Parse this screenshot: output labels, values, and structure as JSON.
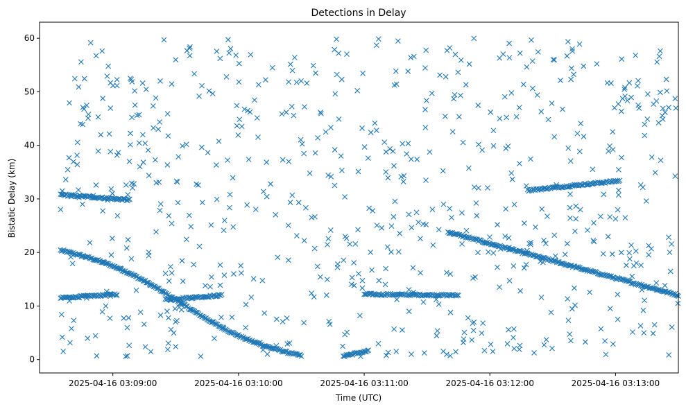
{
  "chart_data": {
    "type": "scatter",
    "title": "Detections in Delay",
    "xlabel": "Time (UTC)",
    "ylabel": "Bistatic Delay (km)",
    "marker": "x",
    "color": "#1f77b4",
    "grid": false,
    "legend": "none",
    "x_axis_type": "datetime",
    "xlim": [
      "2025-04-16 03:08:25",
      "2025-04-16 03:13:30"
    ],
    "ylim": [
      -2.5,
      63
    ],
    "xticks": [
      "2025-04-16 03:09:00",
      "2025-04-16 03:10:00",
      "2025-04-16 03:11:00",
      "2025-04-16 03:12:00",
      "2025-04-16 03:13:00"
    ],
    "yticks": [
      0,
      10,
      20,
      30,
      40,
      50,
      60
    ],
    "tracks": [
      {
        "x_start": "2025-04-16 03:08:35",
        "x_end": "2025-04-16 03:10:30",
        "y_start": 20.4,
        "y_end": 0.7,
        "curve": "sigmoid"
      },
      {
        "x_start": "2025-04-16 03:08:35",
        "x_end": "2025-04-16 03:09:08",
        "y_start": 30.8,
        "y_end": 29.8,
        "curve": "linear"
      },
      {
        "x_start": "2025-04-16 03:08:35",
        "x_end": "2025-04-16 03:09:02",
        "y_start": 11.5,
        "y_end": 12.2,
        "curve": "linear"
      },
      {
        "x_start": "2025-04-16 03:09:25",
        "x_end": "2025-04-16 03:09:52",
        "y_start": 11.2,
        "y_end": 12.0,
        "curve": "linear"
      },
      {
        "x_start": "2025-04-16 03:10:50",
        "x_end": "2025-04-16 03:11:02",
        "y_start": 0.7,
        "y_end": 1.6,
        "curve": "linear"
      },
      {
        "x_start": "2025-04-16 03:11:00",
        "x_end": "2025-04-16 03:11:45",
        "y_start": 12.2,
        "y_end": 12.0,
        "curve": "linear"
      },
      {
        "x_start": "2025-04-16 03:11:40",
        "x_end": "2025-04-16 03:13:30",
        "y_start": 23.8,
        "y_end": 12.0,
        "curve": "linear"
      },
      {
        "x_start": "2025-04-16 03:12:18",
        "x_end": "2025-04-16 03:13:02",
        "y_start": 31.6,
        "y_end": 33.4,
        "curve": "linear"
      }
    ],
    "noise_points": {
      "count": 700,
      "y_range": [
        0.5,
        60
      ]
    }
  }
}
